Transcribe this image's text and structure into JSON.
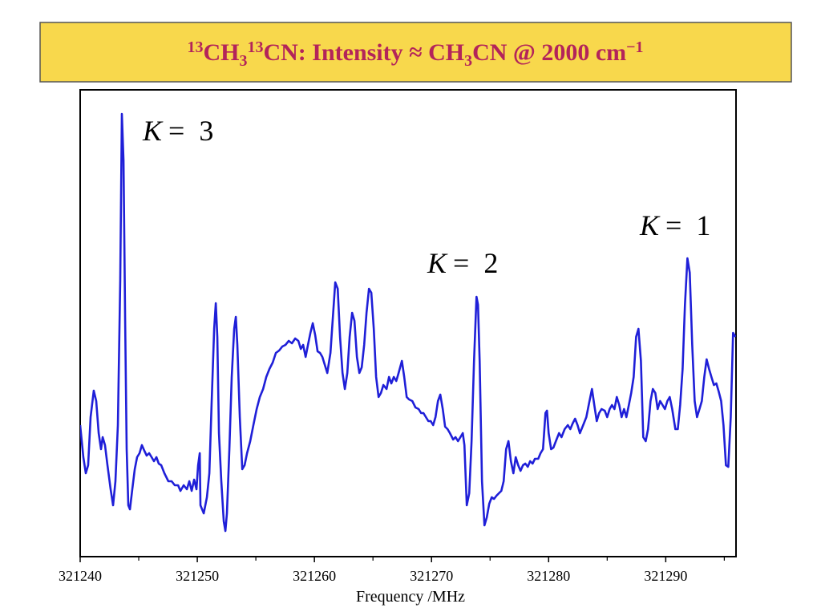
{
  "chart_data": {
    "type": "line",
    "title_parts": [
      {
        "text": "13",
        "style": "sup"
      },
      {
        "text": "CH",
        "style": "normal"
      },
      {
        "text": "3",
        "style": "sub"
      },
      {
        "text": "13",
        "style": "sup"
      },
      {
        "text": "CN: Intensity ≈ CH",
        "style": "normal"
      },
      {
        "text": "3",
        "style": "sub"
      },
      {
        "text": "CN @ 2000 cm",
        "style": "normal"
      },
      {
        "text": "−1",
        "style": "sup"
      }
    ],
    "x_label": "Frequency /MHz",
    "color": "#1f1fd8",
    "xlim": [
      321240,
      321296
    ],
    "xticks": [
      321240,
      321250,
      321260,
      321270,
      321280,
      321290
    ],
    "xminorticks": [
      321245,
      321255,
      321265,
      321275,
      321285,
      321295
    ],
    "ylim": [
      0,
      582
    ],
    "annotations": [
      {
        "variable": "K",
        "text": "=  3"
      },
      {
        "variable": "K",
        "text": "=  2"
      },
      {
        "variable": "K",
        "text": "=  1"
      }
    ],
    "x": [
      321240.0,
      321240.27,
      321240.48,
      321240.68,
      321240.89,
      321241.16,
      321241.37,
      321241.58,
      321241.78,
      321241.92,
      321242.12,
      321242.33,
      321242.6,
      321242.81,
      321243.01,
      321243.22,
      321243.42,
      321243.56,
      321243.7,
      321243.84,
      321243.97,
      321244.11,
      321244.25,
      321244.45,
      321244.66,
      321244.86,
      321245.07,
      321245.27,
      321245.48,
      321245.68,
      321245.89,
      321246.1,
      321246.3,
      321246.51,
      321246.71,
      321246.92,
      321247.19,
      321247.53,
      321247.81,
      321248.08,
      321248.36,
      321248.56,
      321248.84,
      321249.11,
      321249.32,
      321249.52,
      321249.73,
      321249.93,
      321250.07,
      321250.21,
      321250.27,
      321250.55,
      321250.82,
      321251.03,
      321251.23,
      321251.44,
      321251.58,
      321251.71,
      321251.85,
      321252.05,
      321252.26,
      321252.4,
      321252.53,
      321252.74,
      321252.94,
      321253.15,
      321253.29,
      321253.42,
      321253.63,
      321253.84,
      321254.04,
      321254.25,
      321254.52,
      321254.79,
      321255.07,
      321255.34,
      321255.62,
      321255.89,
      321256.16,
      321256.44,
      321256.71,
      321256.99,
      321257.26,
      321257.53,
      321257.81,
      321258.08,
      321258.36,
      321258.63,
      321258.84,
      321259.04,
      321259.25,
      321259.45,
      321259.66,
      321259.86,
      321260.07,
      321260.27,
      321260.48,
      321260.68,
      321260.89,
      321261.1,
      321261.37,
      321261.58,
      321261.78,
      321261.99,
      321262.19,
      321262.4,
      321262.6,
      321262.81,
      321263.01,
      321263.22,
      321263.42,
      321263.63,
      321263.84,
      321264.04,
      321264.25,
      321264.45,
      321264.66,
      321264.86,
      321265.07,
      321265.27,
      321265.48,
      321265.68,
      321265.89,
      321266.16,
      321266.37,
      321266.57,
      321266.78,
      321266.99,
      321267.19,
      321267.47,
      321267.67,
      321267.88,
      321268.08,
      321268.36,
      321268.63,
      321268.9,
      321269.11,
      321269.31,
      321269.52,
      321269.73,
      321269.93,
      321270.14,
      321270.34,
      321270.55,
      321270.75,
      321270.96,
      321271.16,
      321271.37,
      321271.57,
      321271.85,
      321272.05,
      321272.26,
      321272.47,
      321272.67,
      321272.81,
      321273.01,
      321273.22,
      321273.42,
      321273.63,
      321273.84,
      321273.97,
      321274.11,
      321274.31,
      321274.52,
      321274.72,
      321274.93,
      321275.14,
      321275.34,
      321275.55,
      321275.75,
      321275.96,
      321276.16,
      321276.37,
      321276.57,
      321276.78,
      321276.99,
      321277.19,
      321277.4,
      321277.6,
      321277.81,
      321278.01,
      321278.22,
      321278.42,
      321278.63,
      321278.83,
      321279.11,
      321279.31,
      321279.52,
      321279.73,
      321279.86,
      321280.0,
      321280.21,
      321280.41,
      321280.62,
      321280.89,
      321281.1,
      321281.37,
      321281.64,
      321281.85,
      321282.05,
      321282.26,
      321282.47,
      321282.67,
      321282.95,
      321283.22,
      321283.49,
      321283.7,
      321283.9,
      321284.11,
      321284.31,
      321284.52,
      321284.79,
      321285.0,
      321285.21,
      321285.41,
      321285.62,
      321285.82,
      321286.03,
      321286.23,
      321286.44,
      321286.64,
      321286.85,
      321287.05,
      321287.26,
      321287.47,
      321287.67,
      321287.88,
      321288.08,
      321288.29,
      321288.49,
      321288.7,
      321288.9,
      321289.11,
      321289.31,
      321289.52,
      321289.73,
      321289.93,
      321290.14,
      321290.34,
      321290.55,
      321290.82,
      321291.03,
      321291.23,
      321291.44,
      321291.64,
      321291.85,
      321292.05,
      321292.26,
      321292.47,
      321292.67,
      321292.88,
      321293.08,
      321293.29,
      321293.49,
      321293.7,
      321293.9,
      321294.11,
      321294.32,
      321294.52,
      321294.73,
      321294.93,
      321295.14,
      321295.34,
      321295.55,
      321295.75,
      321295.96
    ],
    "values": [
      164,
      124,
      104,
      114,
      174,
      207,
      194,
      154,
      134,
      149,
      139,
      114,
      84,
      64,
      94,
      164,
      344,
      552,
      494,
      294,
      134,
      64,
      59,
      84,
      109,
      124,
      129,
      139,
      132,
      126,
      129,
      124,
      119,
      124,
      116,
      114,
      104,
      94,
      94,
      89,
      89,
      82,
      89,
      84,
      94,
      82,
      96,
      84,
      114,
      129,
      64,
      54,
      74,
      104,
      194,
      284,
      316,
      274,
      154,
      94,
      44,
      32,
      54,
      134,
      224,
      284,
      299,
      264,
      174,
      109,
      114,
      129,
      144,
      164,
      184,
      199,
      209,
      224,
      234,
      242,
      254,
      257,
      262,
      264,
      269,
      266,
      272,
      269,
      259,
      264,
      249,
      264,
      279,
      291,
      276,
      256,
      254,
      249,
      239,
      229,
      254,
      299,
      342,
      334,
      274,
      229,
      209,
      229,
      274,
      304,
      294,
      249,
      229,
      236,
      264,
      304,
      334,
      329,
      284,
      224,
      199,
      204,
      214,
      209,
      224,
      216,
      224,
      219,
      229,
      244,
      224,
      199,
      196,
      194,
      186,
      184,
      179,
      179,
      174,
      169,
      169,
      164,
      174,
      194,
      202,
      184,
      162,
      159,
      154,
      146,
      149,
      144,
      149,
      154,
      139,
      64,
      79,
      144,
      244,
      324,
      314,
      244,
      94,
      39,
      49,
      66,
      74,
      72,
      76,
      79,
      82,
      94,
      134,
      144,
      119,
      104,
      124,
      114,
      107,
      114,
      116,
      112,
      119,
      116,
      122,
      122,
      129,
      134,
      179,
      182,
      154,
      134,
      136,
      144,
      154,
      149,
      159,
      164,
      159,
      166,
      172,
      164,
      154,
      164,
      174,
      194,
      209,
      189,
      169,
      179,
      184,
      182,
      174,
      184,
      189,
      184,
      199,
      189,
      174,
      184,
      174,
      189,
      204,
      224,
      274,
      284,
      244,
      149,
      144,
      159,
      194,
      209,
      204,
      184,
      194,
      189,
      184,
      194,
      199,
      184,
      159,
      159,
      189,
      234,
      314,
      372,
      354,
      264,
      194,
      174,
      184,
      194,
      224,
      246,
      234,
      224,
      214,
      216,
      206,
      194,
      164,
      114,
      112,
      174,
      279,
      274
    ]
  }
}
